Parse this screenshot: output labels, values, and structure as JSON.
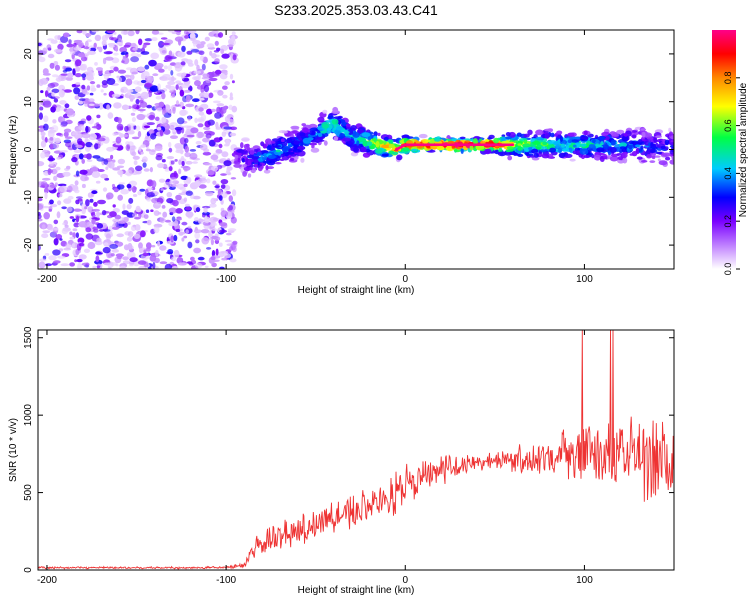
{
  "page_title": "S233.2025.353.03.43.C41",
  "chart_data": [
    {
      "type": "heatmap",
      "title": "S233.2025.353.03.43.C41",
      "xlabel": "Height of straight line (km)",
      "ylabel": "Frequency (Hz)",
      "xlim": [
        -205,
        150
      ],
      "ylim": [
        -25,
        25
      ],
      "x_ticks": [
        -200,
        -100,
        0,
        100
      ],
      "y_ticks": [
        -20,
        -10,
        0,
        10,
        20
      ],
      "x_tick_labels": [
        "-200",
        "-100",
        "0",
        "100"
      ],
      "y_tick_labels": [
        "-20",
        "-10",
        "0",
        "10",
        "20"
      ],
      "noise_region_km": [
        -205,
        -95
      ],
      "signal_track": {
        "x": [
          -95,
          -90,
          -85,
          -80,
          -75,
          -70,
          -65,
          -60,
          -55,
          -50,
          -45,
          -40,
          -35,
          -30,
          -25,
          -20,
          -15,
          -10,
          -5,
          0,
          5,
          10,
          20,
          30,
          40,
          50,
          60,
          70,
          80,
          90,
          100,
          110,
          120,
          130,
          140,
          150
        ],
        "frequency_hz": [
          -0.5,
          -1.5,
          -2,
          -1.5,
          -1,
          0,
          0.5,
          1,
          2,
          3,
          4.5,
          5.5,
          4,
          2.5,
          2,
          1.5,
          1,
          0.5,
          0,
          1,
          1,
          1,
          1,
          1,
          1,
          1,
          1,
          1,
          1,
          1,
          1,
          1,
          0.8,
          1,
          0.5,
          0.5
        ],
        "amplitude": [
          0.2,
          0.3,
          0.35,
          0.4,
          0.45,
          0.45,
          0.4,
          0.4,
          0.4,
          0.4,
          0.5,
          0.55,
          0.45,
          0.45,
          0.55,
          0.6,
          0.7,
          0.75,
          0.8,
          0.85,
          0.9,
          0.95,
          1,
          1,
          1,
          0.95,
          0.7,
          0.6,
          0.55,
          0.5,
          0.5,
          0.45,
          0.45,
          0.4,
          0.35,
          0.3
        ]
      },
      "colorbar": {
        "label": "Normalized spectral amplitude",
        "range": [
          0,
          1
        ],
        "ticks": [
          0.0,
          0.2,
          0.4,
          0.6,
          0.8
        ],
        "tick_labels": [
          "0.0",
          "0.2",
          "0.4",
          "0.6",
          "0.8"
        ],
        "colors": [
          "#ffffff",
          "#cc99ff",
          "#7a00ff",
          "#0000ff",
          "#00ccff",
          "#00ff44",
          "#ffff00",
          "#ff8800",
          "#ff0000",
          "#ff0088"
        ]
      }
    },
    {
      "type": "line",
      "xlabel": "Height of straight line (km)",
      "ylabel": "SNR (10 * v/v)",
      "xlim": [
        -205,
        150
      ],
      "ylim": [
        0,
        1550
      ],
      "x_ticks": [
        -200,
        -100,
        0,
        100
      ],
      "y_ticks": [
        0,
        500,
        1000,
        1500
      ],
      "x_tick_labels": [
        "-200",
        "-100",
        "0",
        "100"
      ],
      "y_tick_labels": [
        "0",
        "500",
        "1000",
        "1500"
      ],
      "series": [
        {
          "name": "SNR",
          "color": "#ee3333",
          "envelope_x": [
            -205,
            -100,
            -90,
            -85,
            -75,
            -60,
            -40,
            -25,
            -10,
            0,
            15,
            30,
            45,
            60,
            75,
            90,
            105,
            120,
            135,
            150
          ],
          "envelope_mean": [
            15,
            15,
            30,
            130,
            200,
            260,
            330,
            400,
            450,
            560,
            620,
            680,
            700,
            720,
            720,
            740,
            760,
            730,
            720,
            680
          ],
          "envelope_spread": [
            10,
            10,
            30,
            90,
            120,
            140,
            160,
            180,
            200,
            200,
            150,
            90,
            60,
            120,
            180,
            240,
            280,
            350,
            420,
            420
          ]
        }
      ]
    }
  ]
}
